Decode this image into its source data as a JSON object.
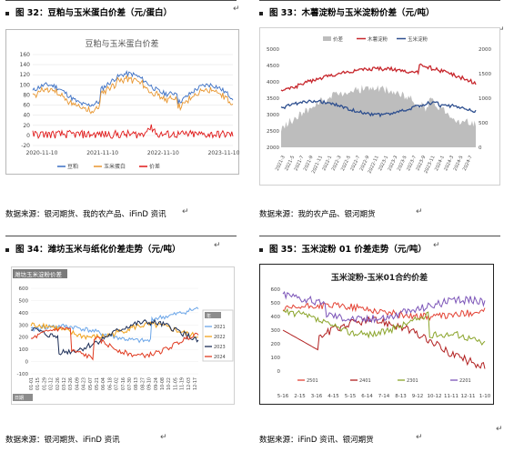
{
  "figures": {
    "fig32": {
      "title": "图 32：豆粕与玉米蛋白价差（元/蛋白）",
      "source": "数据来源：银河期货、我的农产品、iFinD 资讯",
      "chart_title": "豆粕与玉米蛋白价差",
      "y_ticks": [
        "160",
        "140",
        "120",
        "100",
        "80",
        "60",
        "40",
        "20",
        "0",
        "-20"
      ],
      "x_ticks": [
        "2020-11-10",
        "2021-11-10",
        "2022-11-10",
        "2023-11-10"
      ],
      "legend": [
        "豆粕",
        "玉米蛋白",
        "价差"
      ]
    },
    "fig33": {
      "title": "图 33：木薯淀粉与玉米淀粉价差（元/吨）",
      "source": "数据来源：我的农产品、银河期货",
      "legend": [
        "价差",
        "木薯淀粉",
        "玉米淀粉"
      ],
      "y_left_ticks": [
        "5000",
        "4500",
        "4000",
        "3500",
        "3000",
        "2500",
        "2000"
      ],
      "y_right_ticks": [
        "2000",
        "1500",
        "1000",
        "500",
        "0"
      ],
      "x_ticks": [
        "2021-3",
        "2021-5",
        "2021-7",
        "2021-9",
        "2021-11",
        "2022-1",
        "2022-3",
        "2022-5",
        "2022-7",
        "2022-9",
        "2022-11",
        "2023-1",
        "2023-3",
        "2023-5",
        "2023-7",
        "2023-9",
        "2023-11",
        "2024-1",
        "2024-3",
        "2024-5",
        "2024-7"
      ]
    },
    "fig34": {
      "title": "图 34：潍坊玉米与纸化价差走势（元/吨）",
      "source": "数据来源：银河期货、iFinD 资讯",
      "chart_title": "潍坊玉米淀粉价差",
      "y_ticks": [
        "600",
        "500",
        "400",
        "300",
        "200",
        "100",
        "0",
        "-100"
      ],
      "x_ticks": [
        "01-01",
        "01-15",
        "01-29",
        "02-12",
        "02-26",
        "03-12",
        "03-26",
        "04-09",
        "04-23",
        "05-07",
        "05-21",
        "06-04",
        "06-18",
        "07-02",
        "07-16",
        "07-30",
        "08-13",
        "08-27",
        "09-10",
        "09-24",
        "10-08",
        "10-22",
        "11-05",
        "11-19",
        "12-03",
        "12-17"
      ],
      "legend": [
        "2021",
        "2022",
        "2023",
        "2024"
      ],
      "legend_header": "年",
      "filter_label": "日期"
    },
    "fig35": {
      "title": "图 35：玉米淀粉 01 价差走势（元/吨）",
      "source": "数据来源：iFinD 资讯、银河期货",
      "chart_title": "玉米淀粉-玉米01合约价差",
      "y_ticks": [
        "600",
        "500",
        "400",
        "300",
        "200",
        "100",
        "0"
      ],
      "x_ticks": [
        "5-16",
        "2-15",
        "3-16",
        "4-15",
        "5-15",
        "6-14",
        "7-14",
        "8-13",
        "9-12",
        "10-12",
        "11-11",
        "12-11",
        "1-10"
      ],
      "legend": [
        "2501",
        "2401",
        "2301",
        "2201"
      ]
    }
  },
  "colors": {
    "soy": "#3b6fc4",
    "corn_protein": "#e8962f",
    "spread_red": "#e01818",
    "gray_area": "#bdbdbd",
    "cassava_red": "#c7262c",
    "corn_starch_blue": "#2e4f8f",
    "y2021": "#6aa5e8",
    "y2022": "#f0a11a",
    "y2023": "#1b2d57",
    "y2024": "#e03a20",
    "c2501": "#e34234",
    "c2401": "#b12020",
    "c2301": "#8aa42a",
    "c2201": "#7c55b8"
  },
  "icons": {
    "return_arrow": "↵"
  }
}
